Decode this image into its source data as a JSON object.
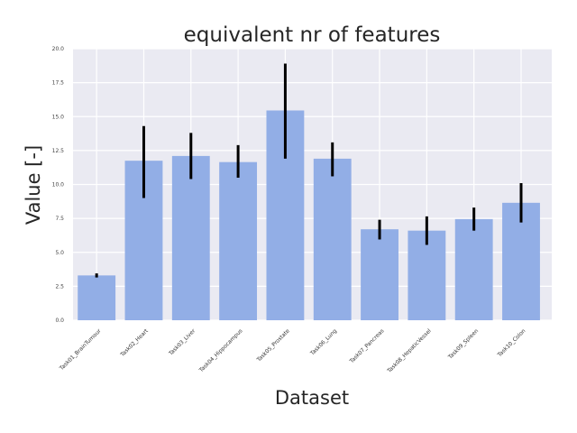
{
  "chart_data": {
    "type": "bar",
    "title": "equivalent nr of features",
    "xlabel": "Dataset",
    "ylabel": "Value [-]",
    "ylim": [
      0,
      20
    ],
    "yticks": [
      "0.0",
      "2.5",
      "5.0",
      "7.5",
      "10.0",
      "12.5",
      "15.0",
      "17.5",
      "20.0"
    ],
    "grid": true,
    "categories": [
      "Task01_BrainTumour",
      "Task02_Heart",
      "Task03_Liver",
      "Task04_Hippocampus",
      "Task05_Prostate",
      "Task06_Lung",
      "Task07_Pancreas",
      "Task08_HepaticVessel",
      "Task09_Spleen",
      "Task10_Colon"
    ],
    "values": [
      3.3,
      11.75,
      12.1,
      11.65,
      15.45,
      11.9,
      6.7,
      6.6,
      7.45,
      8.65
    ],
    "error_low": [
      3.15,
      9.0,
      10.4,
      10.5,
      11.9,
      10.6,
      5.95,
      5.55,
      6.6,
      7.2
    ],
    "error_high": [
      3.45,
      14.3,
      13.8,
      12.9,
      18.9,
      13.1,
      7.4,
      7.65,
      8.3,
      10.1
    ],
    "bar_color": "#92aee6",
    "error_color": "#000000",
    "background_color": "#eaeaf2",
    "grid_color": "#ffffff"
  }
}
